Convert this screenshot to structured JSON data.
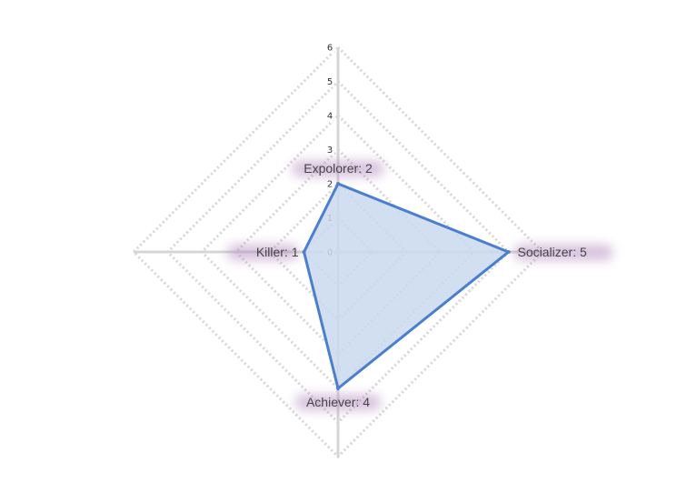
{
  "chart_data": {
    "type": "radar",
    "axes": [
      "Explorer",
      "Socializer",
      "Achiever",
      "Killer"
    ],
    "point_labels": [
      "Expolorer: 2",
      "Socializer: 5",
      "Achiever: 4",
      "Killer: 1"
    ],
    "values": [
      2,
      5,
      4,
      1
    ],
    "r_range": [
      0,
      6
    ],
    "r_ticks": [
      "0",
      "1",
      "2",
      "3",
      "4",
      "5",
      "6"
    ],
    "grid": true,
    "colors": {
      "line": "#4a7fcf",
      "fill": "#c9d9ef",
      "grid": "#d6d6d6",
      "label_glow": "#b48ac0"
    }
  }
}
